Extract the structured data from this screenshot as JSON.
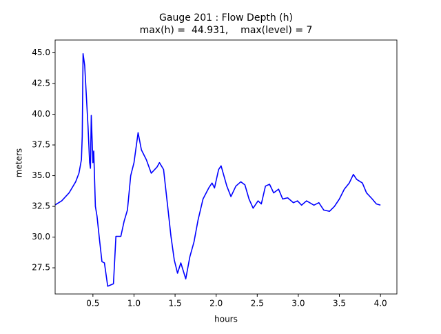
{
  "chart_data": {
    "type": "line",
    "title": "Gauge 201 : Flow Depth (h)",
    "subtitle": "max(h) =  44.931,    max(level) = 7",
    "x_label": "hours",
    "y_label": "meters",
    "xlim": [
      0.04,
      4.2
    ],
    "ylim": [
      25.37,
      46.04
    ],
    "xticks": [
      {
        "value": 0.5,
        "label": "0.5"
      },
      {
        "value": 1.0,
        "label": "1.0"
      },
      {
        "value": 1.5,
        "label": "1.5"
      },
      {
        "value": 2.0,
        "label": "2.0"
      },
      {
        "value": 2.5,
        "label": "2.5"
      },
      {
        "value": 3.0,
        "label": "3.0"
      },
      {
        "value": 3.5,
        "label": "3.5"
      },
      {
        "value": 4.0,
        "label": "4.0"
      }
    ],
    "yticks": [
      {
        "value": 27.5,
        "label": "27.5"
      },
      {
        "value": 30.0,
        "label": "30.0"
      },
      {
        "value": 32.5,
        "label": "32.5"
      },
      {
        "value": 35.0,
        "label": "35.0"
      },
      {
        "value": 37.5,
        "label": "37.5"
      },
      {
        "value": 40.0,
        "label": "40.0"
      },
      {
        "value": 42.5,
        "label": "42.5"
      },
      {
        "value": 45.0,
        "label": "45.0"
      }
    ],
    "grid": false,
    "series": [
      {
        "color": "#0000ff",
        "x": [
          0.04,
          0.12,
          0.21,
          0.29,
          0.33,
          0.36,
          0.37,
          0.38,
          0.4,
          0.42,
          0.44,
          0.46,
          0.47,
          0.48,
          0.5,
          0.51,
          0.53,
          0.55,
          0.58,
          0.61,
          0.64,
          0.68,
          0.75,
          0.78,
          0.84,
          0.88,
          0.92,
          0.96,
          1.0,
          1.05,
          1.09,
          1.15,
          1.21,
          1.28,
          1.31,
          1.36,
          1.4,
          1.45,
          1.49,
          1.53,
          1.57,
          1.63,
          1.68,
          1.73,
          1.78,
          1.84,
          1.91,
          1.95,
          1.98,
          2.03,
          2.06,
          2.13,
          2.18,
          2.24,
          2.3,
          2.35,
          2.4,
          2.45,
          2.51,
          2.55,
          2.6,
          2.65,
          2.7,
          2.76,
          2.81,
          2.87,
          2.94,
          2.99,
          3.04,
          3.1,
          3.19,
          3.25,
          3.31,
          3.38,
          3.44,
          3.5,
          3.56,
          3.62,
          3.67,
          3.71,
          3.78,
          3.83,
          3.9,
          3.95,
          4.0
        ],
        "values": [
          32.62,
          32.95,
          33.6,
          34.5,
          35.2,
          36.3,
          38.2,
          44.93,
          43.96,
          41.5,
          39.06,
          36.06,
          35.6,
          39.9,
          36.06,
          37.0,
          32.5,
          31.7,
          29.8,
          28.0,
          27.9,
          26.0,
          26.2,
          30.06,
          30.06,
          31.3,
          32.2,
          35.0,
          36.06,
          38.5,
          37.1,
          36.3,
          35.2,
          35.7,
          36.06,
          35.5,
          33.1,
          30.06,
          28.15,
          27.06,
          27.9,
          26.6,
          28.4,
          29.6,
          31.4,
          33.1,
          34.0,
          34.4,
          34.0,
          35.5,
          35.8,
          34.15,
          33.3,
          34.15,
          34.5,
          34.25,
          33.1,
          32.35,
          32.95,
          32.7,
          34.15,
          34.3,
          33.6,
          33.9,
          33.1,
          33.2,
          32.8,
          32.95,
          32.6,
          32.95,
          32.6,
          32.8,
          32.2,
          32.1,
          32.5,
          33.1,
          33.9,
          34.4,
          35.1,
          34.7,
          34.4,
          33.6,
          33.1,
          32.7,
          32.6
        ]
      }
    ]
  }
}
